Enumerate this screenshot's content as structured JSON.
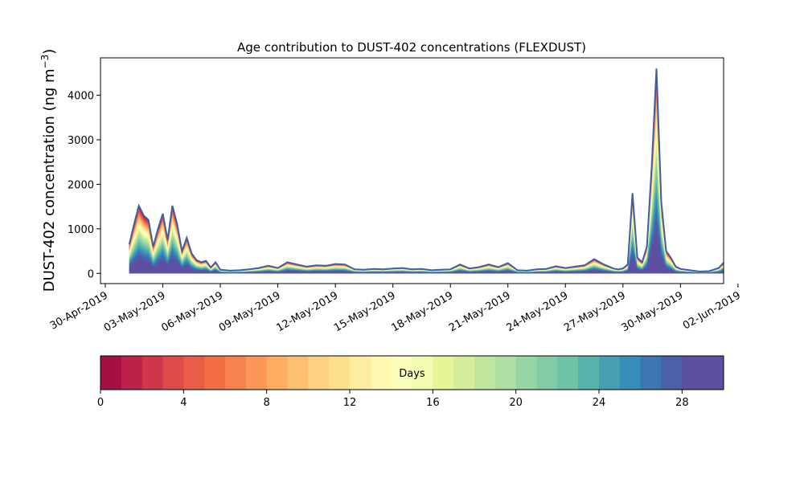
{
  "chart_data": [
    {
      "type": "area",
      "subtype": "stacked",
      "title": "Age contribution to DUST-402 concentrations (FLEXDUST)",
      "ylabel": "DUST-402 concentration (ng m",
      "ylabel_unit_superscript": "−3",
      "ylabel_unit_close": ")",
      "xlabel": "",
      "xlim": [
        "2019-04-29T18:00",
        "2019-06-01T06:00"
      ],
      "ylim": [
        -230,
        4840
      ],
      "yticks": [
        0,
        1000,
        2000,
        3000,
        4000
      ],
      "xtick_labels": [
        "30-Apr-2019",
        "03-May-2019",
        "06-May-2019",
        "09-May-2019",
        "12-May-2019",
        "15-May-2019",
        "18-May-2019",
        "21-May-2019",
        "24-May-2019",
        "27-May-2019",
        "30-May-2019",
        "02-Jun-2019"
      ],
      "xtick_values": [
        "2019-04-30",
        "2019-05-03",
        "2019-05-06",
        "2019-05-09",
        "2019-05-12",
        "2019-05-15",
        "2019-05-18",
        "2019-05-21",
        "2019-05-24",
        "2019-05-27",
        "2019-05-30",
        "2019-06-02"
      ],
      "age_bins_days": "0–30, 1-day bins, stacked from youngest (bottom) to oldest (top)",
      "total_concentration": {
        "x": [
          "2019-05-01T06:00",
          "2019-05-01T12:00",
          "2019-05-01T18:00",
          "2019-05-02T00:00",
          "2019-05-02T06:00",
          "2019-05-02T12:00",
          "2019-05-02T18:00",
          "2019-05-03T00:00",
          "2019-05-03T06:00",
          "2019-05-03T12:00",
          "2019-05-03T18:00",
          "2019-05-04T00:00",
          "2019-05-04T06:00",
          "2019-05-04T12:00",
          "2019-05-04T18:00",
          "2019-05-05T00:00",
          "2019-05-05T06:00",
          "2019-05-05T12:00",
          "2019-05-05T18:00",
          "2019-05-06T00:00",
          "2019-05-06T12:00",
          "2019-05-07T00:00",
          "2019-05-07T12:00",
          "2019-05-08T00:00",
          "2019-05-08T12:00",
          "2019-05-09T00:00",
          "2019-05-09T12:00",
          "2019-05-10T00:00",
          "2019-05-10T12:00",
          "2019-05-11T00:00",
          "2019-05-11T12:00",
          "2019-05-12T00:00",
          "2019-05-12T12:00",
          "2019-05-13T00:00",
          "2019-05-13T12:00",
          "2019-05-14T00:00",
          "2019-05-14T12:00",
          "2019-05-15T00:00",
          "2019-05-15T12:00",
          "2019-05-16T00:00",
          "2019-05-16T12:00",
          "2019-05-17T00:00",
          "2019-05-17T12:00",
          "2019-05-18T00:00",
          "2019-05-18T12:00",
          "2019-05-19T00:00",
          "2019-05-19T12:00",
          "2019-05-20T00:00",
          "2019-05-20T12:00",
          "2019-05-21T00:00",
          "2019-05-21T12:00",
          "2019-05-22T00:00",
          "2019-05-22T12:00",
          "2019-05-23T00:00",
          "2019-05-23T12:00",
          "2019-05-24T00:00",
          "2019-05-24T12:00",
          "2019-05-25T00:00",
          "2019-05-25T12:00",
          "2019-05-26T00:00",
          "2019-05-26T12:00",
          "2019-05-26T18:00",
          "2019-05-27T00:00",
          "2019-05-27T06:00",
          "2019-05-27T12:00",
          "2019-05-27T18:00",
          "2019-05-28T00:00",
          "2019-05-28T06:00",
          "2019-05-28T12:00",
          "2019-05-28T18:00",
          "2019-05-29T00:00",
          "2019-05-29T06:00",
          "2019-05-29T12:00",
          "2019-05-29T18:00",
          "2019-05-30T00:00",
          "2019-05-30T12:00",
          "2019-05-31T00:00",
          "2019-05-31T12:00",
          "2019-06-01T00:00",
          "2019-06-01T06:00"
        ],
        "y": [
          650,
          1100,
          1520,
          1300,
          1200,
          600,
          1000,
          1340,
          750,
          1520,
          1100,
          500,
          800,
          450,
          300,
          250,
          280,
          130,
          250,
          80,
          60,
          70,
          90,
          120,
          170,
          120,
          250,
          200,
          150,
          180,
          170,
          210,
          200,
          90,
          80,
          100,
          90,
          110,
          120,
          90,
          100,
          70,
          80,
          90,
          200,
          110,
          140,
          200,
          140,
          230,
          70,
          60,
          90,
          100,
          160,
          120,
          150,
          180,
          320,
          200,
          110,
          90,
          110,
          200,
          1800,
          350,
          250,
          600,
          2400,
          4600,
          1600,
          500,
          350,
          150,
          100,
          70,
          40,
          50,
          120,
          240
        ]
      },
      "colorbar": {
        "label": "Days",
        "ticks": [
          0,
          4,
          8,
          12,
          16,
          20,
          24,
          28
        ],
        "range": [
          0,
          30
        ],
        "colors": [
          "#a50f44",
          "#bb2149",
          "#cf354b",
          "#de4b4b",
          "#e95c47",
          "#f26d43",
          "#f6824f",
          "#fa9757",
          "#fdac62",
          "#fdc070",
          "#fed082",
          "#fee08b",
          "#feec9f",
          "#fff8b2",
          "#fbfdba",
          "#f3fab1",
          "#e6f597",
          "#d6ee9b",
          "#c3e69f",
          "#b0dfa4",
          "#98d5a4",
          "#82cba5",
          "#6cc3a5",
          "#58b2ac",
          "#46a0b2",
          "#378ebb",
          "#3e76b3",
          "#4a60a9",
          "#5e4fa2",
          "#5e4fa2"
        ]
      }
    }
  ]
}
